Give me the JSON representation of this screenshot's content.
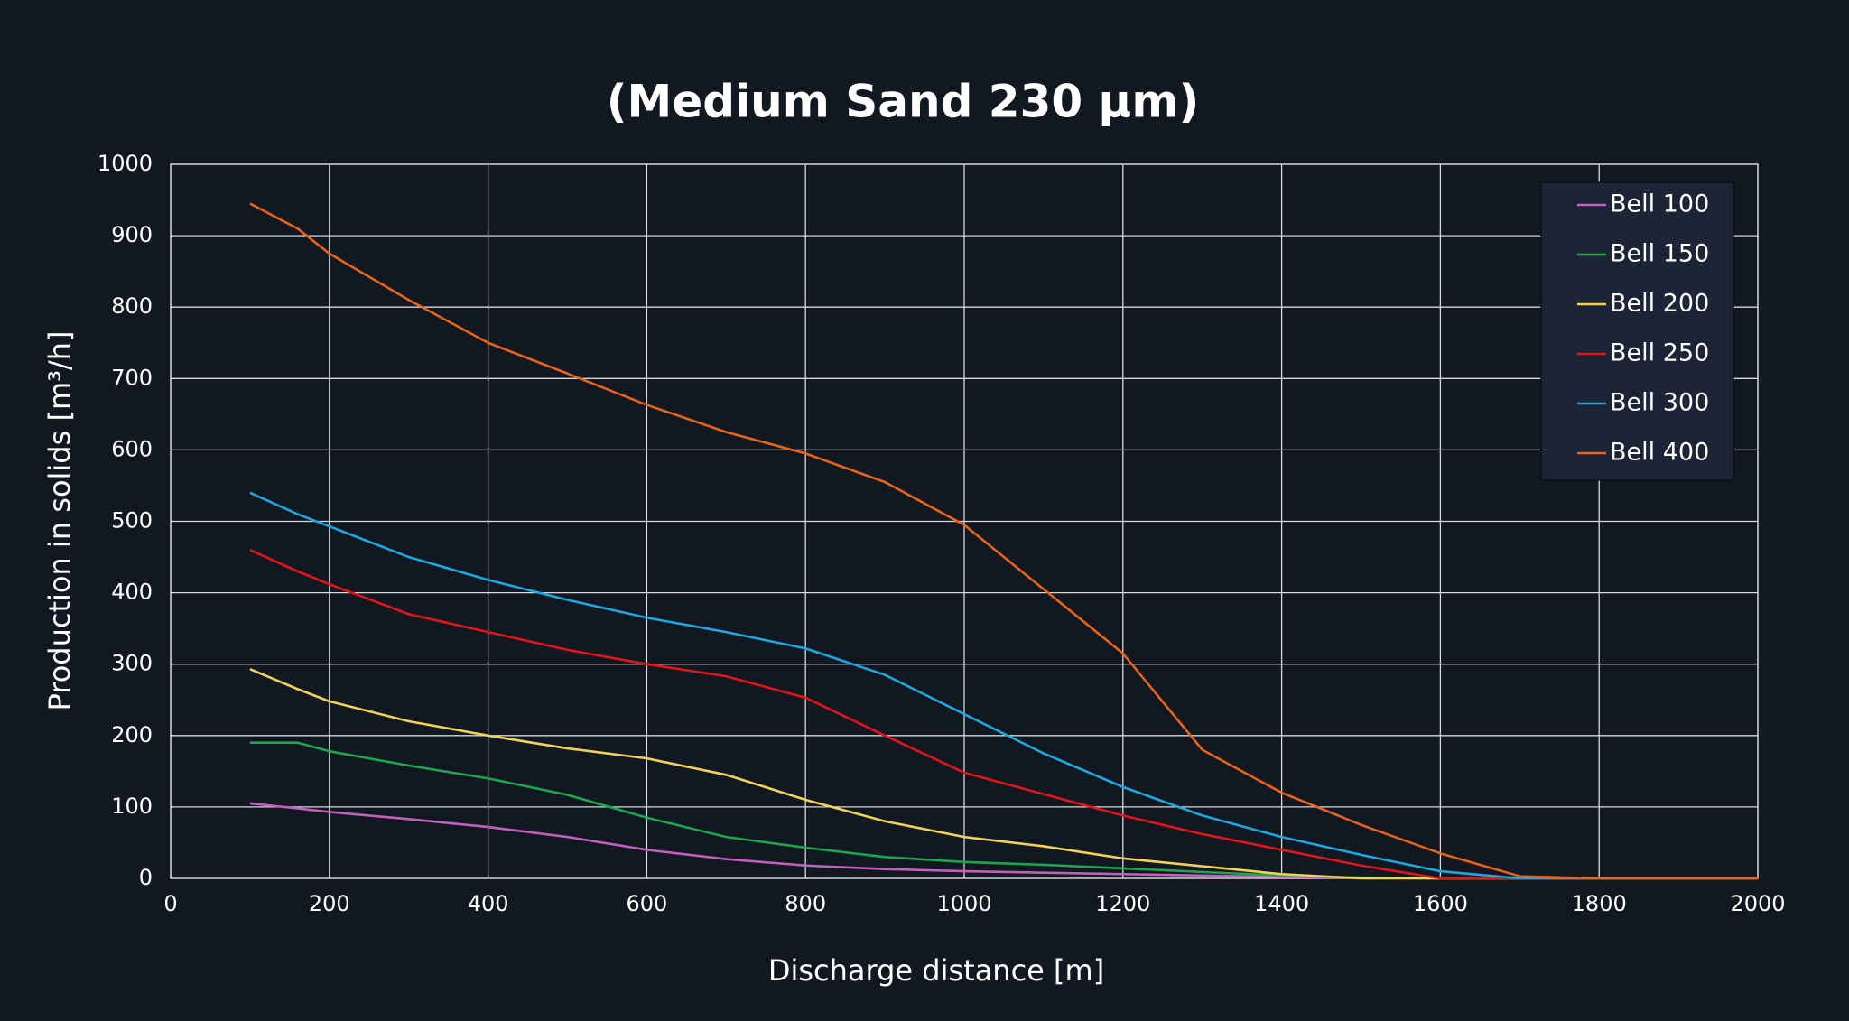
{
  "chart_data": {
    "type": "line",
    "title": "(Medium Sand 230 µm)",
    "x_label": "Discharge distance [m]",
    "y_label": "Production in solids [m³/h]",
    "x": [
      100,
      160,
      200,
      300,
      400,
      500,
      600,
      700,
      800,
      900,
      1000,
      1100,
      1200,
      1300,
      1400,
      1500,
      1600,
      1700,
      1800,
      1900,
      2000
    ],
    "series": [
      {
        "name": "Bell 100",
        "color": "#c45fc0",
        "values": [
          105,
          98,
          93,
          83,
          72,
          58,
          40,
          27,
          18,
          13,
          10,
          8,
          6,
          4,
          2,
          1,
          0,
          0,
          0,
          0,
          0
        ]
      },
      {
        "name": "Bell 150",
        "color": "#1ea64d",
        "values": [
          190,
          190,
          178,
          158,
          140,
          117,
          85,
          58,
          43,
          30,
          23,
          19,
          14,
          9,
          4,
          1,
          0,
          0,
          0,
          0,
          0
        ]
      },
      {
        "name": "Bell 200",
        "color": "#f2d25a",
        "values": [
          293,
          265,
          248,
          220,
          200,
          182,
          168,
          145,
          110,
          80,
          58,
          45,
          28,
          17,
          6,
          0,
          0,
          0,
          0,
          0,
          0
        ]
      },
      {
        "name": "Bell 250",
        "color": "#e0161a",
        "values": [
          460,
          430,
          412,
          370,
          345,
          320,
          300,
          283,
          253,
          200,
          148,
          118,
          88,
          62,
          40,
          18,
          0,
          0,
          0,
          0,
          0
        ]
      },
      {
        "name": "Bell 300",
        "color": "#1ea8e0",
        "values": [
          540,
          510,
          493,
          450,
          418,
          390,
          365,
          345,
          322,
          285,
          230,
          175,
          128,
          88,
          58,
          33,
          10,
          0,
          0,
          0,
          0
        ]
      },
      {
        "name": "Bell 400",
        "color": "#e8641c",
        "values": [
          945,
          910,
          875,
          810,
          750,
          707,
          663,
          625,
          595,
          555,
          495,
          405,
          315,
          180,
          120,
          75,
          35,
          3,
          0,
          0,
          0
        ]
      }
    ],
    "xlim": [
      0,
      2000
    ],
    "xticks": [
      0,
      200,
      400,
      600,
      800,
      1000,
      1200,
      1400,
      1600,
      1800,
      2000
    ],
    "ylim": [
      0,
      1000
    ],
    "yticks": [
      0,
      100,
      200,
      300,
      400,
      500,
      600,
      700,
      800,
      900,
      1000
    ],
    "grid": true,
    "legend": "upper right"
  }
}
